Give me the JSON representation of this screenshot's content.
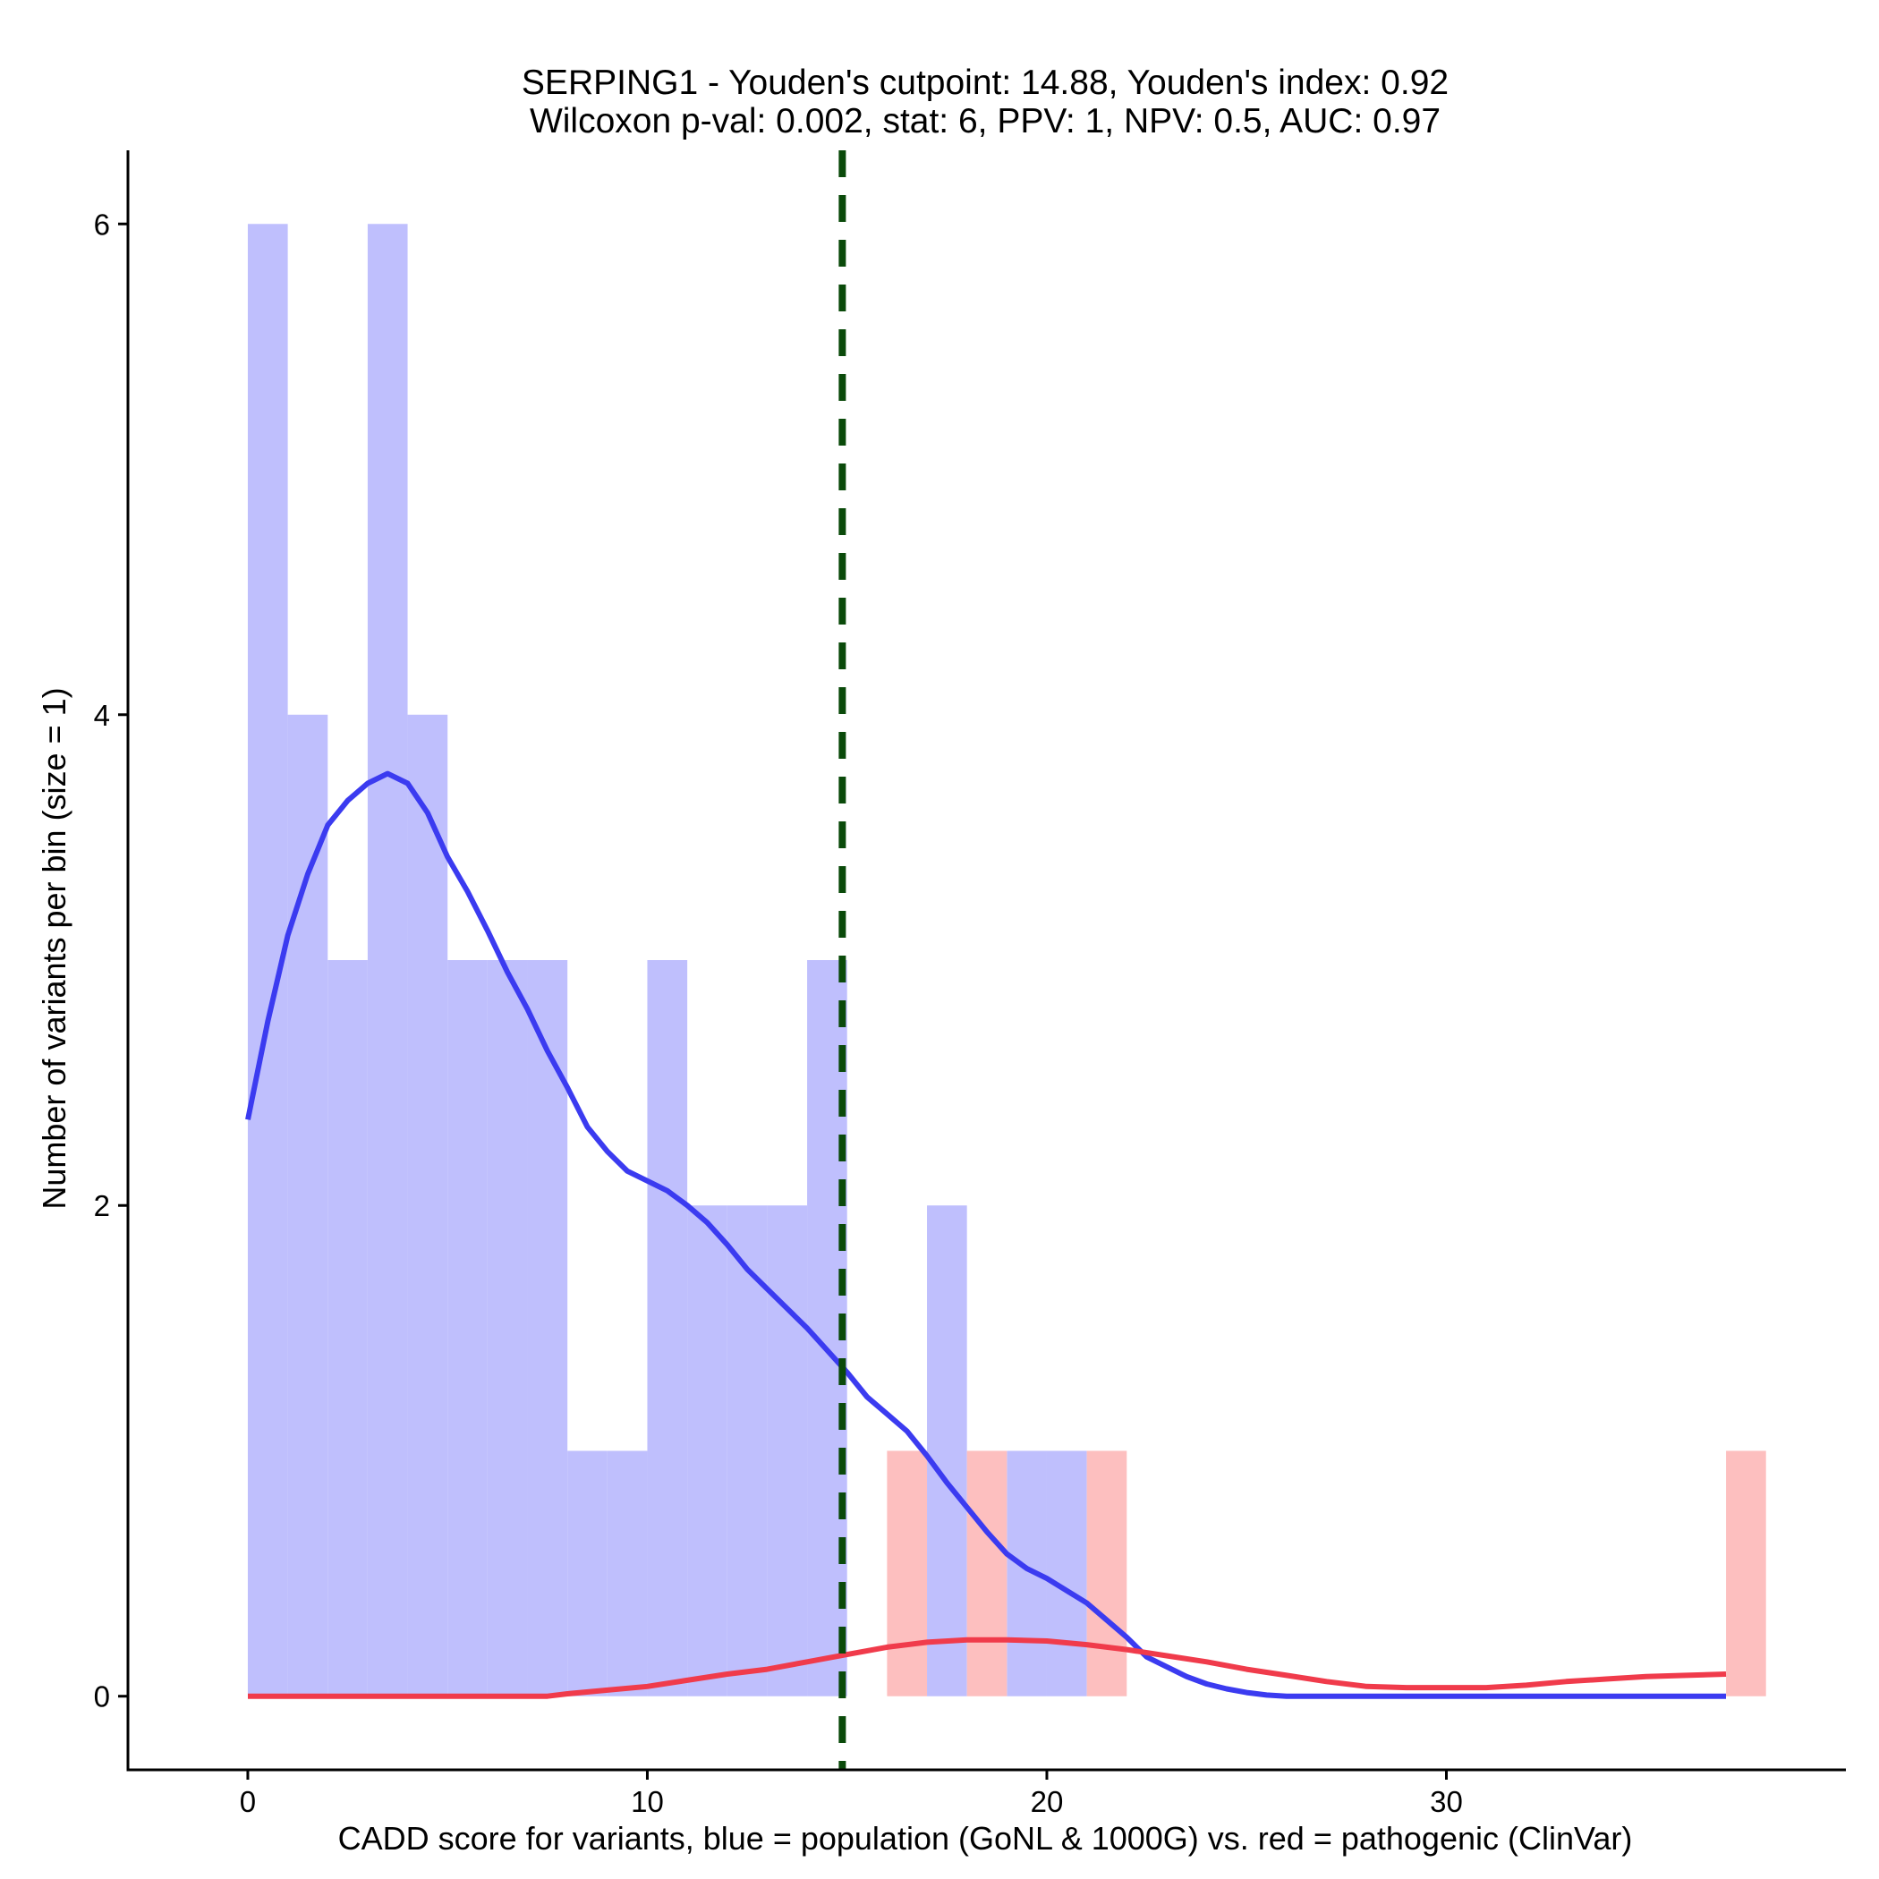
{
  "chart_data": {
    "type": "bar",
    "title": "SERPING1 - Youden's cutpoint: 14.88, Youden's index: 0.92",
    "subtitle": "Wilcoxon p-val: 0.002, stat: 6, PPV: 1, NPV: 0.5, AUC: 0.97",
    "xlabel": "CADD score for variants, blue = population (GoNL & 1000G) vs. red = pathogenic (ClinVar)",
    "ylabel": "Number of variants per bin (size = 1)",
    "xlim": [
      -3,
      40
    ],
    "ylim": [
      -0.3,
      6.3
    ],
    "x_ticks": [
      0,
      10,
      20,
      30
    ],
    "y_ticks": [
      0,
      2,
      4,
      6
    ],
    "cutpoint": 14.88,
    "grid": false,
    "colors": {
      "population_bar": "#bfbffd",
      "pathogenic_bar": "#fdbfbf",
      "population_density": "#3b3bf0",
      "pathogenic_density": "#f03b4b",
      "cutpoint_line": "#0a4a0a"
    },
    "series": [
      {
        "name": "blue = population (GoNL & 1000G)",
        "bins": [
          {
            "x0": 0,
            "x1": 1,
            "count": 6
          },
          {
            "x0": 1,
            "x1": 2,
            "count": 4
          },
          {
            "x0": 2,
            "x1": 3,
            "count": 3
          },
          {
            "x0": 3,
            "x1": 4,
            "count": 6
          },
          {
            "x0": 4,
            "x1": 5,
            "count": 4
          },
          {
            "x0": 5,
            "x1": 6,
            "count": 3
          },
          {
            "x0": 6,
            "x1": 7,
            "count": 3
          },
          {
            "x0": 7,
            "x1": 8,
            "count": 3
          },
          {
            "x0": 8,
            "x1": 9,
            "count": 1
          },
          {
            "x0": 9,
            "x1": 10,
            "count": 1
          },
          {
            "x0": 10,
            "x1": 11,
            "count": 3
          },
          {
            "x0": 11,
            "x1": 12,
            "count": 2
          },
          {
            "x0": 12,
            "x1": 13,
            "count": 2
          },
          {
            "x0": 13,
            "x1": 14,
            "count": 2
          },
          {
            "x0": 14,
            "x1": 15,
            "count": 3
          },
          {
            "x0": 17,
            "x1": 18,
            "count": 2
          },
          {
            "x0": 19,
            "x1": 20,
            "count": 1
          },
          {
            "x0": 20,
            "x1": 21,
            "count": 1
          }
        ],
        "density": [
          [
            0,
            2.35
          ],
          [
            0.5,
            2.75
          ],
          [
            1,
            3.1
          ],
          [
            1.5,
            3.35
          ],
          [
            2,
            3.55
          ],
          [
            2.5,
            3.65
          ],
          [
            3,
            3.72
          ],
          [
            3.5,
            3.76
          ],
          [
            4,
            3.72
          ],
          [
            4.5,
            3.6
          ],
          [
            5,
            3.42
          ],
          [
            5.5,
            3.28
          ],
          [
            6,
            3.12
          ],
          [
            6.5,
            2.95
          ],
          [
            7,
            2.8
          ],
          [
            7.5,
            2.63
          ],
          [
            8,
            2.48
          ],
          [
            8.5,
            2.32
          ],
          [
            9,
            2.22
          ],
          [
            9.5,
            2.14
          ],
          [
            10,
            2.1
          ],
          [
            10.5,
            2.06
          ],
          [
            11,
            2.0
          ],
          [
            11.5,
            1.93
          ],
          [
            12,
            1.84
          ],
          [
            12.5,
            1.74
          ],
          [
            13,
            1.66
          ],
          [
            13.5,
            1.58
          ],
          [
            14,
            1.5
          ],
          [
            14.5,
            1.41
          ],
          [
            15,
            1.32
          ],
          [
            15.5,
            1.22
          ],
          [
            16,
            1.15
          ],
          [
            16.5,
            1.08
          ],
          [
            17,
            0.98
          ],
          [
            17.5,
            0.87
          ],
          [
            18,
            0.77
          ],
          [
            18.5,
            0.67
          ],
          [
            19,
            0.58
          ],
          [
            19.5,
            0.52
          ],
          [
            20,
            0.48
          ],
          [
            20.5,
            0.43
          ],
          [
            21,
            0.38
          ],
          [
            21.5,
            0.31
          ],
          [
            22,
            0.24
          ],
          [
            22.5,
            0.16
          ],
          [
            23,
            0.12
          ],
          [
            23.5,
            0.08
          ],
          [
            24,
            0.05
          ],
          [
            24.5,
            0.03
          ],
          [
            25,
            0.015
          ],
          [
            25.5,
            0.005
          ],
          [
            26,
            0
          ],
          [
            30,
            0
          ],
          [
            37,
            0
          ]
        ]
      },
      {
        "name": "red = pathogenic (ClinVar)",
        "bins": [
          {
            "x0": 16,
            "x1": 17,
            "count": 1
          },
          {
            "x0": 18,
            "x1": 19,
            "count": 1
          },
          {
            "x0": 21,
            "x1": 22,
            "count": 1
          },
          {
            "x0": 37,
            "x1": 38,
            "count": 1
          }
        ],
        "density": [
          [
            0,
            0
          ],
          [
            4,
            0
          ],
          [
            7.5,
            0
          ],
          [
            8,
            0.01
          ],
          [
            9,
            0.025
          ],
          [
            10,
            0.04
          ],
          [
            11,
            0.065
          ],
          [
            12,
            0.09
          ],
          [
            13,
            0.11
          ],
          [
            14,
            0.14
          ],
          [
            15,
            0.17
          ],
          [
            16,
            0.2
          ],
          [
            17,
            0.22
          ],
          [
            18,
            0.23
          ],
          [
            19,
            0.23
          ],
          [
            20,
            0.225
          ],
          [
            21,
            0.21
          ],
          [
            22,
            0.19
          ],
          [
            23,
            0.165
          ],
          [
            24,
            0.14
          ],
          [
            25,
            0.11
          ],
          [
            26,
            0.085
          ],
          [
            27,
            0.06
          ],
          [
            28,
            0.04
          ],
          [
            29,
            0.035
          ],
          [
            30,
            0.035
          ],
          [
            31,
            0.035
          ],
          [
            32,
            0.045
          ],
          [
            33,
            0.06
          ],
          [
            34,
            0.07
          ],
          [
            35,
            0.08
          ],
          [
            36,
            0.085
          ],
          [
            37,
            0.09
          ]
        ]
      }
    ]
  }
}
